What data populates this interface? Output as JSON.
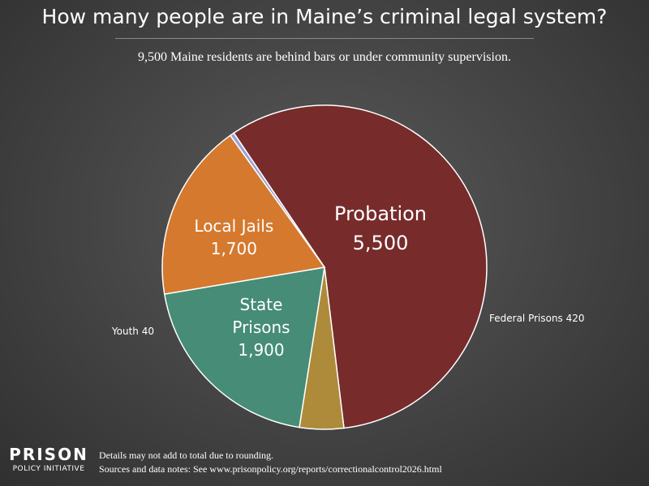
{
  "chart_data": {
    "type": "pie",
    "title": "How many people are in Maine’s criminal legal system?",
    "subtitle": "9,500 Maine residents are behind bars or under community supervision.",
    "slices": [
      {
        "name": "Probation",
        "value": 5500,
        "value_label": "5,500",
        "color": "#772b2b",
        "label_position": "inside"
      },
      {
        "name": "Federal Prisons",
        "value": 420,
        "value_label": "420",
        "color": "#ad8b3a",
        "label_position": "outside"
      },
      {
        "name": "State Prisons",
        "value": 1900,
        "value_label": "1,900",
        "color": "#468c77",
        "label_position": "inside"
      },
      {
        "name": "Local Jails",
        "value": 1700,
        "value_label": "1,700",
        "color": "#d5792e",
        "label_position": "inside"
      },
      {
        "name": "Youth",
        "value": 40,
        "value_label": "40",
        "color": "#9aa2d6",
        "label_position": "outside"
      }
    ],
    "legend": "none"
  },
  "logo": {
    "line1": "PRISON",
    "line2": "POLICY INITIATIVE"
  },
  "footnotes": {
    "line1": "Details may not add to total due to rounding.",
    "line2": "Sources and data notes: See www.prisonpolicy.org/reports/correctionalcontrol2026.html"
  }
}
